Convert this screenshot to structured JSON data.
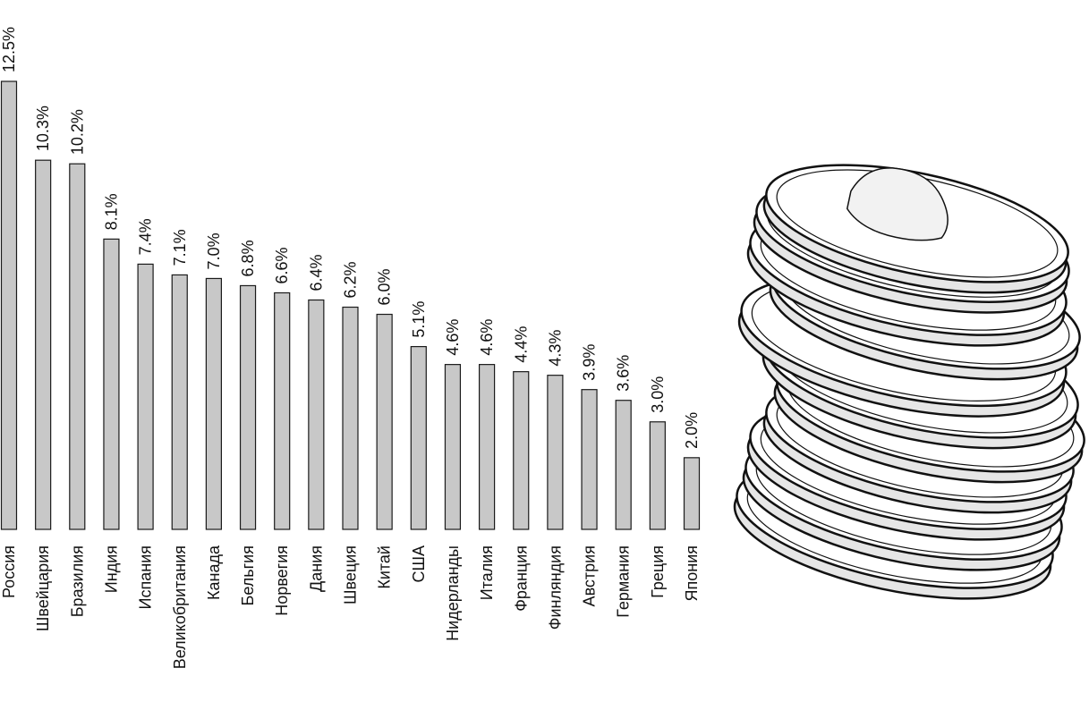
{
  "chart_data": {
    "type": "bar",
    "categories": [
      "Россия",
      "Швейцария",
      "Бразилия",
      "Индия",
      "Испания",
      "Великобритания",
      "Канада",
      "Бельгия",
      "Норвегия",
      "Дания",
      "Швеция",
      "Китай",
      "США",
      "Нидерланды",
      "Италия",
      "Франция",
      "Финляндия",
      "Австрия",
      "Германия",
      "Греция",
      "Япония"
    ],
    "values": [
      12.5,
      10.3,
      10.2,
      8.1,
      7.4,
      7.1,
      7.0,
      6.8,
      6.6,
      6.4,
      6.2,
      6.0,
      5.1,
      4.6,
      4.6,
      4.4,
      4.3,
      3.9,
      3.6,
      3.0,
      2.0
    ],
    "value_labels": [
      "12.5%",
      "10.3%",
      "10.2%",
      "8.1%",
      "7.4%",
      "7.1%",
      "7.0%",
      "6.8%",
      "6.6%",
      "6.4%",
      "6.2%",
      "6.0%",
      "5.1%",
      "4.6%",
      "4.6%",
      "4.4%",
      "4.3%",
      "3.9%",
      "3.6%",
      "3.0%",
      "2.0%"
    ],
    "title": "",
    "xlabel": "",
    "ylabel": "",
    "ylim": [
      0,
      12.5
    ],
    "grid": false,
    "label_orientation": "vertical",
    "colors": {
      "bar_fill": "#c8c8c8",
      "bar_stroke": "#1a1a1a",
      "text": "#111111"
    }
  },
  "illustration": {
    "icon": "coin-stack-icon"
  }
}
